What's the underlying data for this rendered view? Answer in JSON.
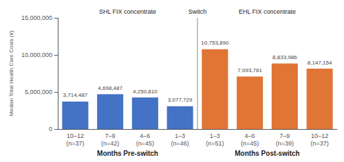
{
  "chart_data": {
    "type": "bar",
    "ylabel": "Median Total Health Care Costs (¥)",
    "categories": [
      "10–12\n(n=37)",
      "7–9\n(n=42)",
      "4–6\n(n=45)",
      "1–3\n(n=46)",
      "1–3\n(n=51)",
      "4–6\n(n=45)",
      "7–9\n(n=39)",
      "10–12\n(n=37)"
    ],
    "values": [
      3714487,
      4698487,
      4250810,
      3077729,
      10753890,
      7093761,
      8833986,
      8147154
    ],
    "value_labels": [
      "3,714,487",
      "4,698,487",
      "4,250,810",
      "3,077,729",
      "10,753,890",
      "7,093,761",
      "8,833,986",
      "8,147,154"
    ],
    "colors": [
      "#4472C4",
      "#4472C4",
      "#4472C4",
      "#4472C4",
      "#E07535",
      "#E07535",
      "#E07535",
      "#E07535"
    ],
    "data_labels": true,
    "annotations": [
      "SHL FIX concentrate",
      "Switch",
      "EHL FIX concentrate",
      "Months Pre-switch",
      "Months Post-switch"
    ],
    "ylim": [
      0,
      15000000
    ],
    "yticks": [
      0,
      {
        "value": 5000000,
        "label": "5,000,000"
      },
      {
        "value": 10000000,
        "label": "10,000,000"
      },
      {
        "value": 15000000,
        "label": "15,000,000"
      }
    ],
    "grid": false
  }
}
